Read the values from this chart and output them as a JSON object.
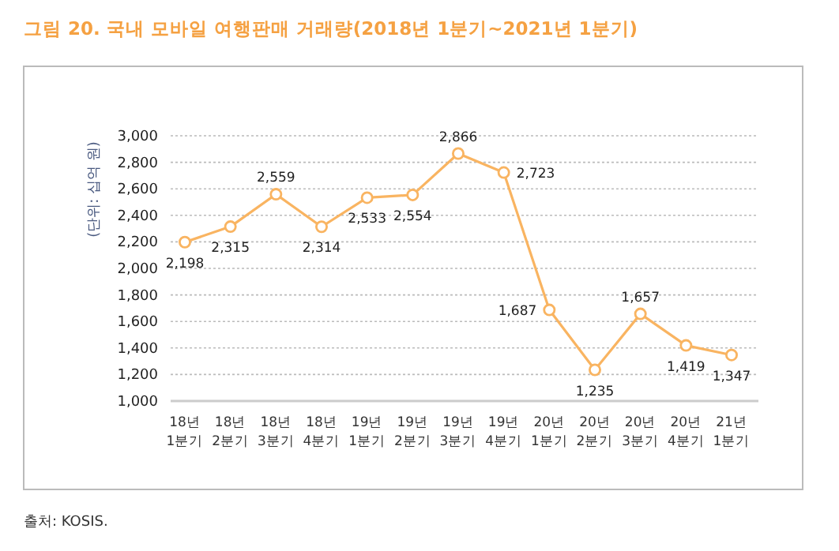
{
  "chart_data": {
    "type": "line",
    "title": "그림 20. 국내 모바일 여행판매 거래량(2018년 1분기~2021년 1분기)",
    "ylabel": "(단위: 십억 원)",
    "categories": [
      "18년\n1분기",
      "18년\n2분기",
      "18년\n3분기",
      "18년\n4분기",
      "19년\n1분기",
      "19년\n2분기",
      "19년\n3분기",
      "19년\n4분기",
      "20년\n1분기",
      "20년\n2분기",
      "20년\n3분기",
      "20년\n4분기",
      "21년\n1분기"
    ],
    "series": [
      {
        "color": "#f9b461",
        "values": [
          2198,
          2315,
          2559,
          2314,
          2533,
          2554,
          2866,
          2723,
          1687,
          1235,
          1657,
          1419,
          1347
        ],
        "value_labels": [
          "2,198",
          "2,315",
          "2,559",
          "2,314",
          "2,533",
          "2,554",
          "2,866",
          "2,723",
          "1,687",
          "1,235",
          "1,657",
          "1,419",
          "1,347"
        ]
      }
    ],
    "ylim": [
      1000,
      3000
    ],
    "yticks": [
      {
        "value": 1000,
        "label": "1,000"
      },
      {
        "value": 1200,
        "label": "1,200"
      },
      {
        "value": 1400,
        "label": "1,400"
      },
      {
        "value": 1600,
        "label": "1,600"
      },
      {
        "value": 1800,
        "label": "1,800"
      },
      {
        "value": 2000,
        "label": "2,000"
      },
      {
        "value": 2200,
        "label": "2,200"
      },
      {
        "value": 2400,
        "label": "2,400"
      },
      {
        "value": 2600,
        "label": "2,600"
      },
      {
        "value": 2800,
        "label": "2,800"
      },
      {
        "value": 3000,
        "label": "3,000"
      }
    ],
    "grid": "y",
    "marker": "circle",
    "line_style": "solid",
    "annotations": [
      "출처: KOSIS."
    ]
  }
}
